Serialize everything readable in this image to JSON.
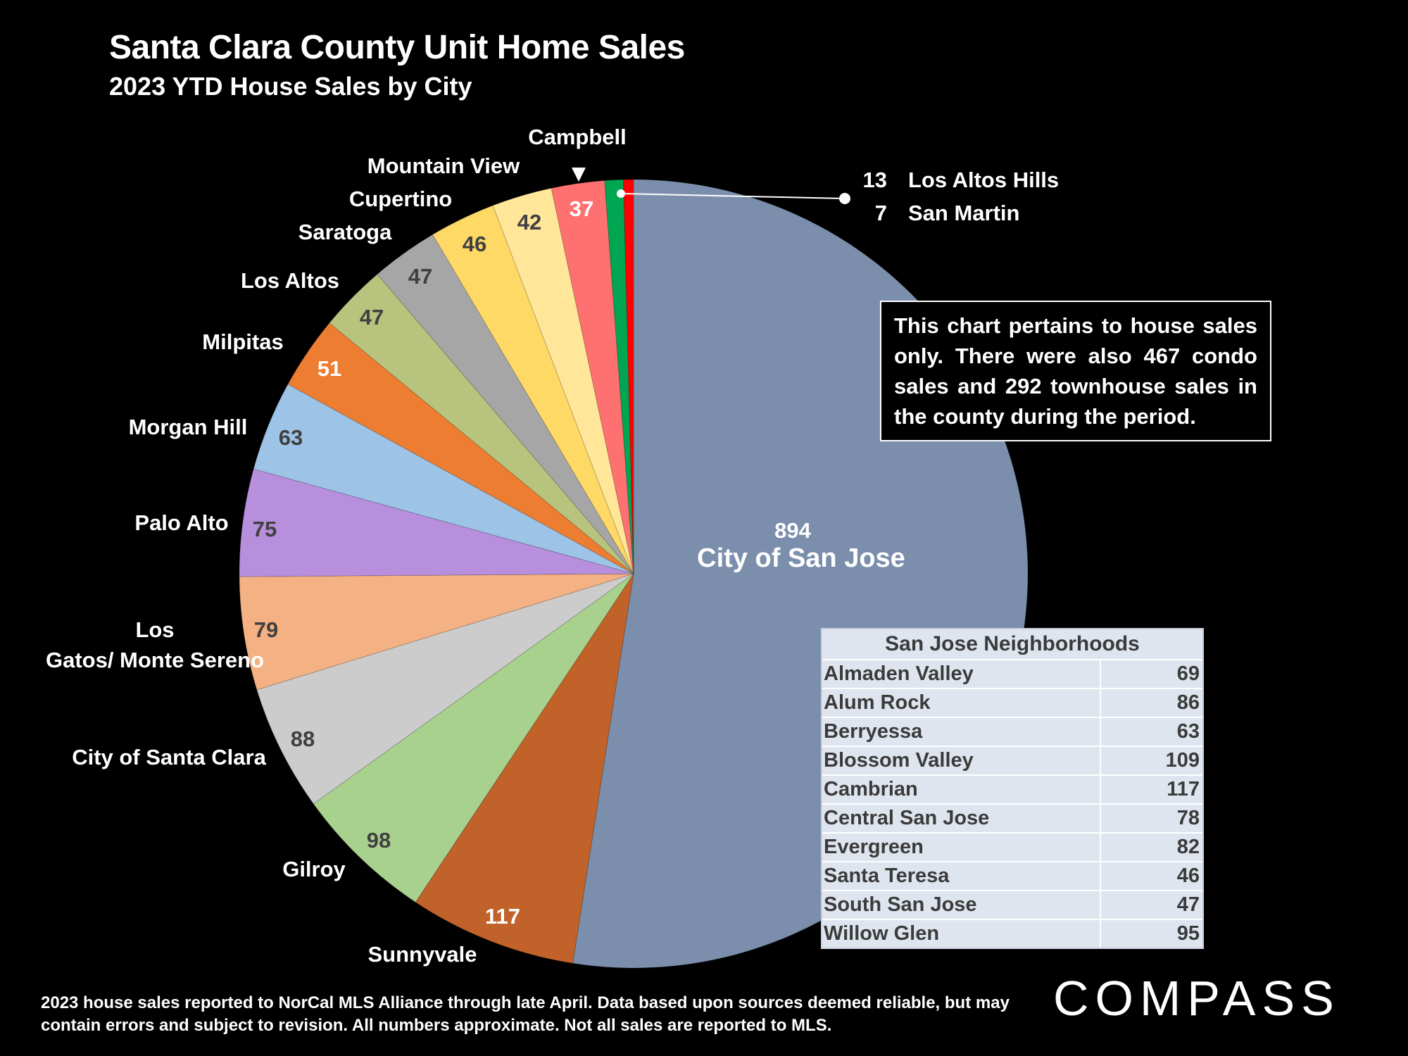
{
  "header": {
    "title": "Santa Clara County Unit Home Sales",
    "subtitle": "2023 YTD House Sales by City"
  },
  "note": "This chart pertains to house sales only. There were also 467 condo sales and 292 townhouse sales in the county during the period.",
  "footnote": "2023 house sales reported to NorCal MLS Alliance through late April. Data based upon sources deemed reliable, but may contain errors and subject to revision. All numbers approximate. Not all sales are reported to MLS.",
  "logo": {
    "text": "COMPASS"
  },
  "neighborhoods": {
    "title": "San Jose Neighborhoods",
    "rows": [
      {
        "name": "Almaden Valley",
        "value": "69"
      },
      {
        "name": "Alum Rock",
        "value": "86"
      },
      {
        "name": "Berryessa",
        "value": "63"
      },
      {
        "name": "Blossom Valley",
        "value": "109"
      },
      {
        "name": "Cambrian",
        "value": "117"
      },
      {
        "name": "Central San Jose",
        "value": "78"
      },
      {
        "name": "Evergreen",
        "value": "82"
      },
      {
        "name": "Santa Teresa",
        "value": "46"
      },
      {
        "name": "South San Jose",
        "value": "47"
      },
      {
        "name": "Willow Glen",
        "value": "95"
      }
    ]
  },
  "chart_data": {
    "type": "pie",
    "title": "Santa Clara County Unit Home Sales",
    "subtitle": "2023 YTD House Sales by City",
    "categories": [
      "City of San Jose",
      "Sunnyvale",
      "Gilroy",
      "City of Santa Clara",
      "Los Gatos/ Monte Sereno",
      "Palo Alto",
      "Morgan Hill",
      "Milpitas",
      "Los Altos",
      "Saratoga",
      "Cupertino",
      "Mountain View",
      "Campbell",
      "Los Altos Hills",
      "San Martin"
    ],
    "values": [
      894,
      117,
      98,
      88,
      79,
      75,
      63,
      51,
      47,
      47,
      46,
      42,
      37,
      13,
      7
    ],
    "slices": [
      {
        "name": "City of San Jose",
        "value": 894,
        "color": "#7b8fac"
      },
      {
        "name": "Sunnyvale",
        "value": 117,
        "color": "#c0622a"
      },
      {
        "name": "Gilroy",
        "value": 98,
        "color": "#a9d18e"
      },
      {
        "name": "City of Santa Clara",
        "value": 88,
        "color": "#cccccc"
      },
      {
        "name": "Los Gatos/ Monte Sereno",
        "value": 79,
        "color": "#f4b183"
      },
      {
        "name": "Palo Alto",
        "value": 75,
        "color": "#b78fdc"
      },
      {
        "name": "Morgan Hill",
        "value": 63,
        "color": "#9dc3e6"
      },
      {
        "name": "Milpitas",
        "value": 51,
        "color": "#ed7d31"
      },
      {
        "name": "Los Altos",
        "value": 47,
        "color": "#b8c47e"
      },
      {
        "name": "Saratoga",
        "value": 47,
        "color": "#a6a6a6"
      },
      {
        "name": "Cupertino",
        "value": 46,
        "color": "#ffd966"
      },
      {
        "name": "Mountain View",
        "value": 42,
        "color": "#ffe699"
      },
      {
        "name": "Campbell",
        "value": 37,
        "color": "#ff7070"
      },
      {
        "name": "Los Altos Hills",
        "value": 13,
        "color": "#00a651"
      },
      {
        "name": "San Martin",
        "value": 7,
        "color": "#ff0000"
      }
    ],
    "start_angle_deg": 0,
    "direction": "clockwise",
    "legend": "none"
  }
}
